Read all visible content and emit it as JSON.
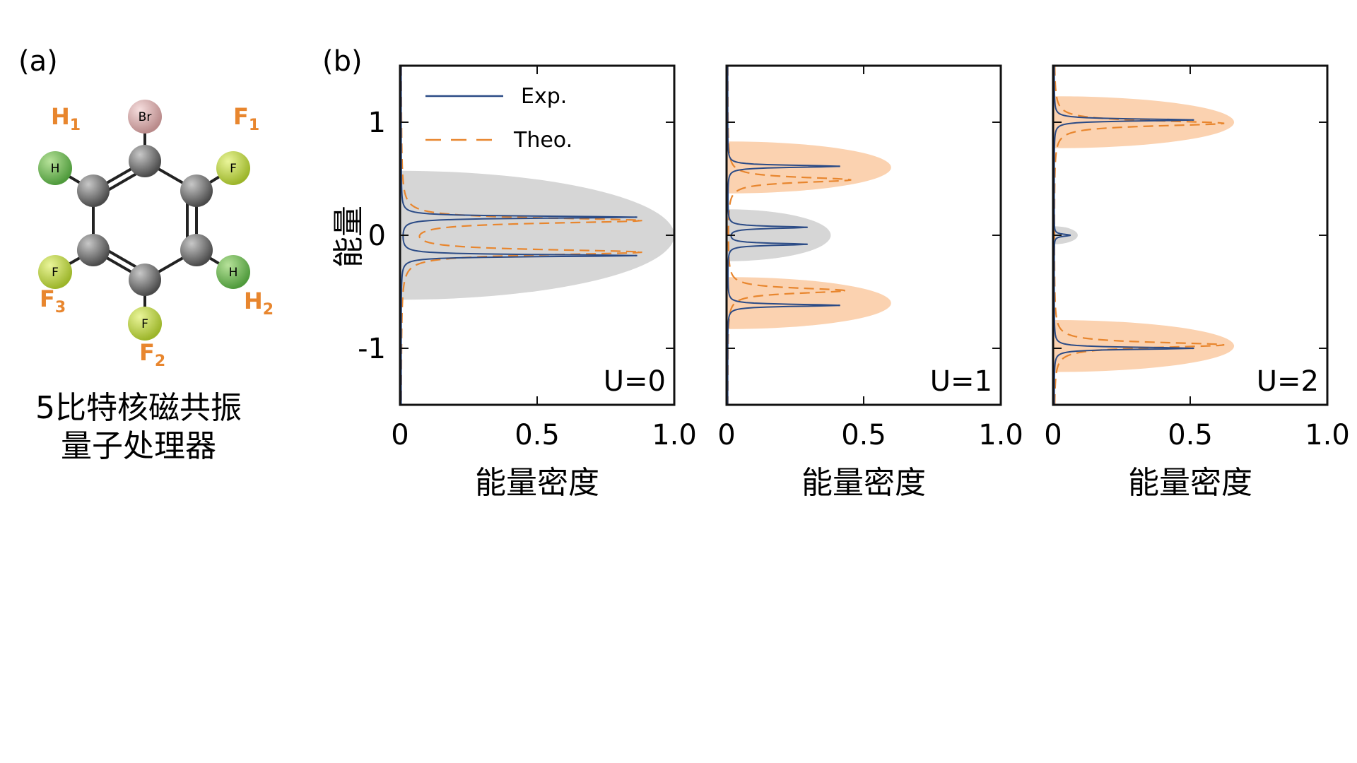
{
  "labels": {
    "panel_a": "(a)",
    "panel_b": "(b)"
  },
  "molecule": {
    "atoms": {
      "Br": "Br",
      "H": "H",
      "F": "F"
    },
    "nuclei": [
      {
        "main": "H",
        "sub": "1"
      },
      {
        "main": "F",
        "sub": "1"
      },
      {
        "main": "F",
        "sub": "3"
      },
      {
        "main": "H",
        "sub": "2"
      },
      {
        "main": "F",
        "sub": "2"
      }
    ],
    "caption_line1": "5比特核磁共振",
    "caption_line2": "量子处理器"
  },
  "colors": {
    "exp": "#2b4b86",
    "theo": "#e8862e",
    "gray_band": "#d6d6d6",
    "orange_band": "#fbd2b0",
    "axis": "#111111"
  },
  "legend": {
    "exp": "Exp.",
    "theo": "Theo."
  },
  "chart_data": [
    {
      "type": "line",
      "panel_label": "U=0",
      "xlabel": "能量密度",
      "ylabel": "能量",
      "xlim": [
        0,
        1.0
      ],
      "ylim": [
        -1.5,
        1.5
      ],
      "xticks": [
        "0",
        "0.5",
        "1.0"
      ],
      "yticks": [
        "1",
        "0",
        "-1"
      ],
      "grid": false,
      "bands": [
        {
          "center": 0,
          "half_height": 0.57,
          "extent": 1.0,
          "color": "gray"
        }
      ],
      "series": [
        {
          "name": "Exp.",
          "peaks": [
            {
              "energy": 0.16,
              "density": 0.86
            },
            {
              "energy": -0.18,
              "density": 0.86
            }
          ]
        },
        {
          "name": "Theo.",
          "peaks": [
            {
              "energy": 0.13,
              "density": 0.87
            },
            {
              "energy": -0.15,
              "density": 0.87
            }
          ]
        }
      ]
    },
    {
      "type": "line",
      "panel_label": "U=1",
      "xlabel": "能量密度",
      "ylabel": "",
      "xlim": [
        0,
        1.0
      ],
      "ylim": [
        -1.5,
        1.5
      ],
      "xticks": [
        "0",
        "0.5",
        "1.0"
      ],
      "yticks": [
        "1",
        "0",
        "-1"
      ],
      "grid": false,
      "bands": [
        {
          "center": 0.6,
          "half_height": 0.23,
          "extent": 0.6,
          "color": "orange"
        },
        {
          "center": 0,
          "half_height": 0.23,
          "extent": 0.38,
          "color": "gray"
        },
        {
          "center": -0.6,
          "half_height": 0.23,
          "extent": 0.6,
          "color": "orange"
        }
      ],
      "series": [
        {
          "name": "Exp.",
          "peaks": [
            {
              "energy": 0.61,
              "density": 0.41
            },
            {
              "energy": 0.07,
              "density": 0.29
            },
            {
              "energy": -0.08,
              "density": 0.29
            },
            {
              "energy": -0.62,
              "density": 0.41
            }
          ]
        },
        {
          "name": "Theo.",
          "peaks": [
            {
              "energy": 0.49,
              "density": 0.45
            },
            {
              "energy": -0.49,
              "density": 0.43
            }
          ]
        }
      ]
    },
    {
      "type": "line",
      "panel_label": "U=2",
      "xlabel": "能量密度",
      "ylabel": "",
      "xlim": [
        0,
        1.0
      ],
      "ylim": [
        -1.5,
        1.5
      ],
      "xticks": [
        "0",
        "0.5",
        "1.0"
      ],
      "yticks": [
        "1",
        "0",
        "-1"
      ],
      "grid": false,
      "bands": [
        {
          "center": 1.0,
          "half_height": 0.23,
          "extent": 0.66,
          "color": "orange"
        },
        {
          "center": 0,
          "half_height": 0.08,
          "extent": 0.09,
          "color": "gray"
        },
        {
          "center": -0.98,
          "half_height": 0.23,
          "extent": 0.66,
          "color": "orange"
        }
      ],
      "series": [
        {
          "name": "Exp.",
          "peaks": [
            {
              "energy": 1.02,
              "density": 0.51
            },
            {
              "energy": 0.0,
              "density": 0.06
            },
            {
              "energy": -1.0,
              "density": 0.51
            }
          ]
        },
        {
          "name": "Theo.",
          "peaks": [
            {
              "energy": 0.99,
              "density": 0.62
            },
            {
              "energy": -0.97,
              "density": 0.62
            }
          ]
        }
      ]
    }
  ]
}
